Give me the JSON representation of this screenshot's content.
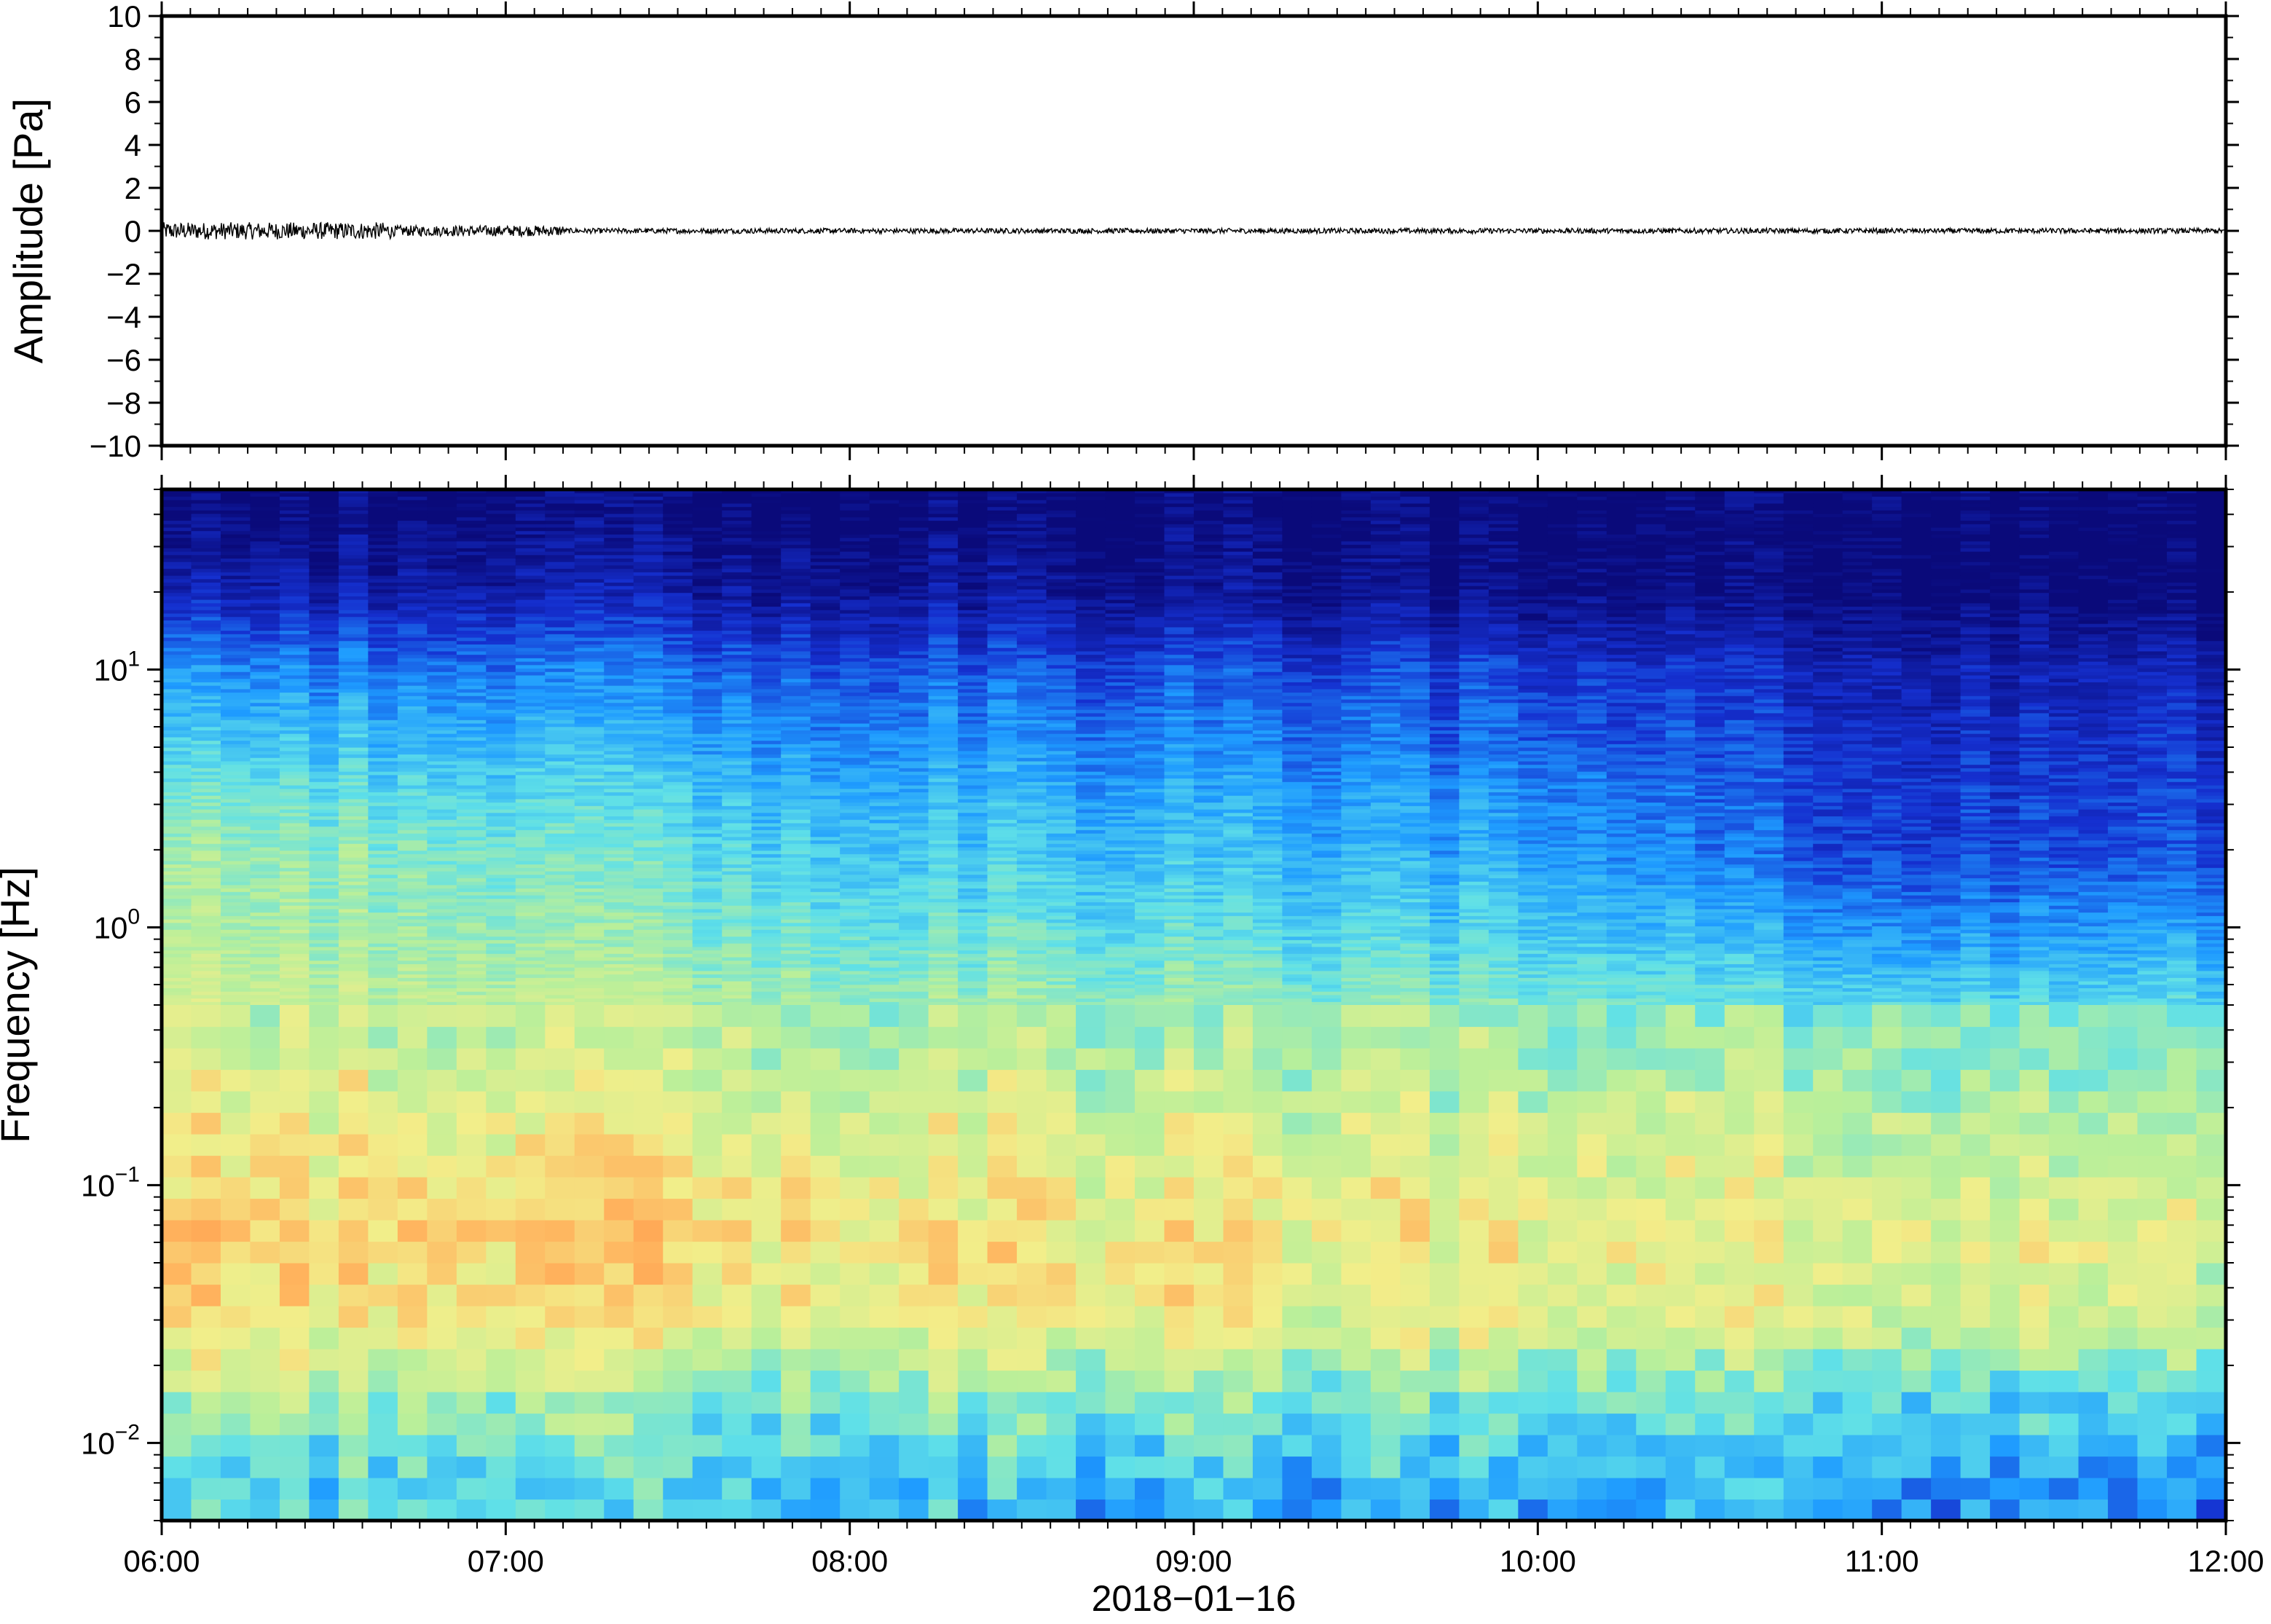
{
  "figure": {
    "date_label": "2018−01−16"
  },
  "chart_data": [
    {
      "type": "line",
      "panel": "amplitude",
      "title": "",
      "ylabel": "Amplitude [Pa]",
      "xlabel": "",
      "ylim": [
        -10,
        10
      ],
      "xlim": [
        "06:00",
        "12:00"
      ],
      "y_ticks": [
        {
          "value": 10,
          "label": "10"
        },
        {
          "value": 8,
          "label": "8"
        },
        {
          "value": 6,
          "label": "6"
        },
        {
          "value": 4,
          "label": "4"
        },
        {
          "value": 2,
          "label": "2"
        },
        {
          "value": 0,
          "label": "0"
        },
        {
          "value": -2,
          "label": "−2"
        },
        {
          "value": -4,
          "label": "−4"
        },
        {
          "value": -6,
          "label": "−6"
        },
        {
          "value": -8,
          "label": "−8"
        },
        {
          "value": -10,
          "label": "−10"
        }
      ],
      "series": [
        {
          "color": "#000000",
          "envelope_segments": [
            {
              "from": "06:00",
              "to": "06:40",
              "peak_amplitude": 0.4
            },
            {
              "from": "06:40",
              "to": "07:10",
              "peak_amplitude": 0.25
            },
            {
              "from": "07:10",
              "to": "12:00",
              "peak_amplitude": 0.12
            }
          ]
        }
      ]
    },
    {
      "type": "heatmap",
      "panel": "spectrogram",
      "title": "",
      "ylabel": "Frequency [Hz]",
      "xlabel": "2018−01−16",
      "y_scale": "log",
      "ylim": [
        0.005,
        50
      ],
      "xlim": [
        "06:00",
        "12:00"
      ],
      "y_ticks": [
        {
          "value": 10,
          "base": "10",
          "exp": "1"
        },
        {
          "value": 1,
          "base": "10",
          "exp": "0"
        },
        {
          "value": 0.1,
          "base": "10",
          "exp": "−1"
        },
        {
          "value": 0.01,
          "base": "10",
          "exp": "−2"
        }
      ],
      "x_ticks": [
        "06:00",
        "07:00",
        "08:00",
        "09:00",
        "10:00",
        "11:00",
        "12:00"
      ],
      "colormap": [
        "#0a0a7a",
        "#1530d0",
        "#1e9bff",
        "#5fe0e8",
        "#b9ef9a",
        "#f2ee8a",
        "#ffb45e",
        "#ff8a40"
      ],
      "power_profile_by_frequency": [
        {
          "freq_hz": 40,
          "level": 0.0
        },
        {
          "freq_hz": 20,
          "level": 0.05
        },
        {
          "freq_hz": 10,
          "level": 0.2
        },
        {
          "freq_hz": 3,
          "level": 0.35
        },
        {
          "freq_hz": 1,
          "level": 0.45
        },
        {
          "freq_hz": 0.3,
          "level": 0.6
        },
        {
          "freq_hz": 0.06,
          "level": 0.75
        },
        {
          "freq_hz": 0.03,
          "level": 0.7
        },
        {
          "freq_hz": 0.015,
          "level": 0.5
        },
        {
          "freq_hz": 0.006,
          "level": 0.35
        }
      ],
      "trend_over_time": [
        {
          "time": "06:00",
          "offset": 0.1
        },
        {
          "time": "07:00",
          "offset": 0.05
        },
        {
          "time": "08:00",
          "offset": 0.0
        },
        {
          "time": "09:00",
          "offset": -0.02
        },
        {
          "time": "10:00",
          "offset": -0.05
        },
        {
          "time": "11:00",
          "offset": -0.15
        },
        {
          "time": "12:00",
          "offset": -0.12
        }
      ]
    }
  ]
}
